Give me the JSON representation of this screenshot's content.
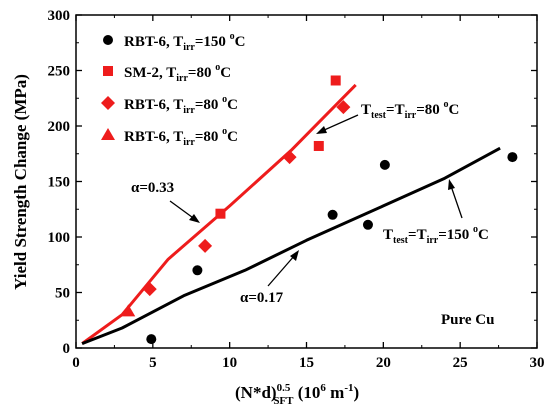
{
  "chart_data": {
    "type": "scatter",
    "xlim": [
      0,
      30
    ],
    "ylim": [
      0,
      300
    ],
    "x_ticks": [
      "0",
      "5",
      "10",
      "15",
      "20",
      "25",
      "30"
    ],
    "y_ticks": [
      "0",
      "50",
      "100",
      "150",
      "200",
      "250",
      "300"
    ],
    "x_tick_values": [
      0,
      5,
      10,
      15,
      20,
      25,
      30
    ],
    "y_tick_values": [
      0,
      50,
      100,
      150,
      200,
      250,
      300
    ],
    "ylabel": "Yield Strength Change (MPa)",
    "xlabel": {
      "a": "(N*d)",
      "b": "0.5",
      "c": "SFT",
      "d": " (10",
      "e": "6",
      "f": " m",
      "g": "-1",
      "h": ")"
    },
    "series": [
      {
        "legend": {
          "a": "RBT-6, T",
          "b": "irr",
          "c": "=150 ",
          "d": "o",
          "e": "C"
        },
        "marker": "circle",
        "color": "#000000",
        "points": [
          [
            4.9,
            8
          ],
          [
            7.9,
            70
          ],
          [
            16.7,
            120
          ],
          [
            19.0,
            111
          ],
          [
            20.1,
            165
          ],
          [
            28.4,
            172
          ]
        ]
      },
      {
        "legend": {
          "a": "SM-2, T",
          "b": "irr",
          "c": "=80 ",
          "d": "o",
          "e": "C"
        },
        "marker": "square",
        "color": "#ee1c1c",
        "points": [
          [
            9.4,
            121
          ],
          [
            15.8,
            182
          ],
          [
            16.9,
            241
          ]
        ]
      },
      {
        "legend": {
          "a": "RBT-6, T",
          "b": "irr",
          "c": "=80 ",
          "d": "o",
          "e": "C"
        },
        "marker": "diamond",
        "color": "#ee1c1c",
        "points": [
          [
            4.8,
            53
          ],
          [
            8.4,
            92
          ],
          [
            13.9,
            172
          ],
          [
            17.4,
            217
          ]
        ]
      },
      {
        "legend": {
          "a": "RBT-6, T",
          "b": "irr",
          "c": "=80 ",
          "d": "o",
          "e": "C"
        },
        "marker": "triangle",
        "color": "#ee1c1c",
        "points": [
          [
            3.4,
            33
          ]
        ]
      }
    ],
    "fit_lines": [
      {
        "color": "#ee1c1c",
        "points": [
          [
            0.4,
            4
          ],
          [
            3,
            30
          ],
          [
            6,
            80
          ],
          [
            10,
            128
          ],
          [
            14,
            178
          ],
          [
            18.2,
            237
          ]
        ]
      },
      {
        "color": "#000000",
        "points": [
          [
            0.4,
            4
          ],
          [
            3,
            18
          ],
          [
            7,
            47
          ],
          [
            11,
            70
          ],
          [
            15,
            97
          ],
          [
            20,
            128
          ],
          [
            24,
            153
          ],
          [
            27.6,
            180
          ]
        ]
      }
    ],
    "annotations": {
      "alpha_red": "α=0.33",
      "alpha_black": "α=0.17",
      "ttest_red": {
        "a": "T",
        "b": "test",
        "c": "=T",
        "d": "irr",
        "e": "=80 ",
        "f": "o",
        "g": "C"
      },
      "ttest_black": {
        "a": "T",
        "b": "test",
        "c": "=T",
        "d": "irr",
        "e": "=150 ",
        "f": "o",
        "g": "C"
      },
      "material": "Pure Cu"
    }
  }
}
